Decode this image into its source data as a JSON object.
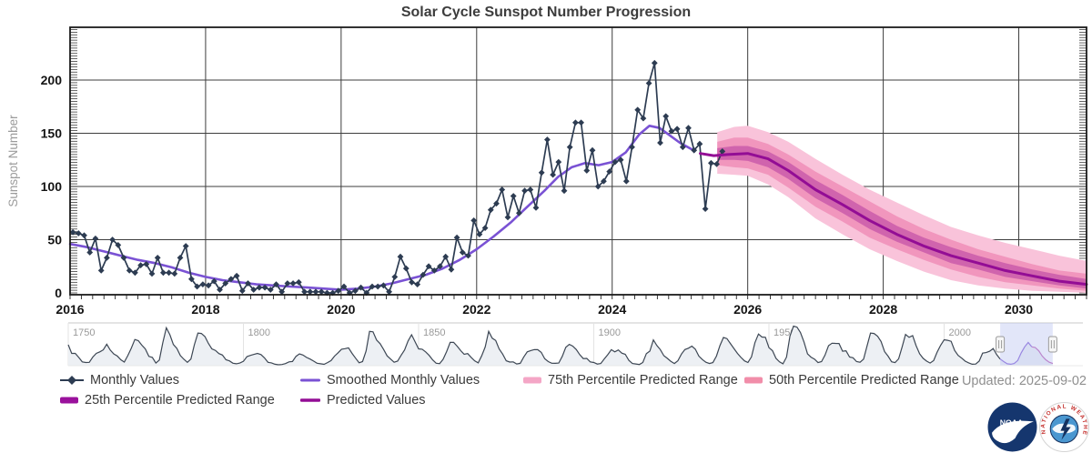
{
  "title": "Solar Cycle Sunspot Number Progression",
  "updated": "Updated: 2025-09-02",
  "y_axis": {
    "label": "Sunspot Number",
    "ticks": [
      0,
      50,
      100,
      150,
      200
    ]
  },
  "x_axis": {
    "ticks": [
      2016,
      2018,
      2020,
      2022,
      2024,
      2026,
      2028,
      2030
    ]
  },
  "legend": {
    "items": [
      "Monthly Values",
      "Smoothed Monthly Values",
      "75th Percentile Predicted Range",
      "50th Percentile Predicted Range",
      "25th Percentile Predicted Range",
      "Predicted Values"
    ]
  },
  "logos": {
    "noaa": "NOAA",
    "nws_ring": "NATIONAL WEATHER SERVICE"
  },
  "colors": {
    "monthly": "#2d3c52",
    "smoothed": "#7a52d4",
    "predicted": "#930d95",
    "band_75": "#f9c3da",
    "band_50": "#f196bd",
    "band_25": "#d064ad",
    "legend_75": "#f4a6c6",
    "legend_50": "#f18da9",
    "legend_25": "#9a119c",
    "selection": "#bfc8f2",
    "nav_line": "#3d4754",
    "nav_fill": "#edf0f4",
    "nav_pred": "#b84fae",
    "grid": "#3d3d3d",
    "frame": "#1b1b1b"
  },
  "chart_data": [
    {
      "type": "line",
      "title": "Solar Cycle Sunspot Number Progression",
      "xlabel": "",
      "ylabel": "Sunspot Number",
      "xlim": [
        2016,
        2031
      ],
      "ylim": [
        0,
        250
      ],
      "grid": true,
      "legend_position": "bottom",
      "series": [
        {
          "name": "Monthly Values",
          "style": "line-diamond",
          "x_start": 2016.042,
          "x_step": 0.083333,
          "values": [
            57,
            56,
            54,
            38,
            51,
            21,
            33,
            50,
            45,
            33,
            21,
            19,
            26,
            27,
            18,
            33,
            19,
            19,
            18,
            33,
            44,
            13,
            6,
            8,
            7,
            11,
            3,
            9,
            13,
            16,
            2,
            9,
            3,
            5,
            5,
            3,
            8,
            1,
            9,
            9,
            10,
            1,
            1,
            1,
            1,
            0,
            0,
            2,
            6,
            0,
            2,
            5,
            0,
            6,
            6,
            7,
            1,
            15,
            34,
            23,
            10,
            8,
            17,
            25,
            21,
            25,
            34,
            22,
            52,
            38,
            35,
            68,
            55,
            61,
            78,
            84,
            97,
            71,
            91,
            75,
            96,
            97,
            80,
            113,
            144,
            111,
            123,
            96,
            137,
            160,
            160,
            115,
            134,
            100,
            105,
            114,
            123,
            125,
            105,
            137,
            172,
            164,
            197,
            216,
            141,
            166,
            152,
            154,
            137,
            155,
            134,
            140,
            79,
            122,
            121,
            133
          ]
        },
        {
          "name": "Smoothed Monthly Values",
          "style": "line",
          "x": [
            2016.0,
            2016.25,
            2016.5,
            2016.75,
            2017.0,
            2017.25,
            2017.5,
            2017.75,
            2018.0,
            2018.25,
            2018.5,
            2018.75,
            2019.0,
            2019.25,
            2019.5,
            2019.75,
            2020.0,
            2020.25,
            2020.5,
            2020.75,
            2021.0,
            2021.25,
            2021.5,
            2021.75,
            2022.0,
            2022.25,
            2022.5,
            2022.75,
            2023.0,
            2023.2,
            2023.4,
            2023.6,
            2023.8,
            2024.0,
            2024.2,
            2024.4,
            2024.55,
            2024.7,
            2024.85,
            2025.0,
            2025.2
          ],
          "values": [
            46,
            43,
            39,
            35,
            31,
            28,
            24,
            19,
            15,
            12,
            10,
            8,
            7,
            6,
            5,
            4,
            3,
            4,
            6,
            9,
            13,
            17,
            23,
            31,
            41,
            53,
            66,
            81,
            96,
            109,
            118,
            122,
            120,
            123,
            132,
            149,
            157,
            155,
            148,
            141,
            134
          ]
        },
        {
          "name": "Predicted Values",
          "style": "line",
          "x": [
            2025.3,
            2025.5,
            2025.7,
            2026.0,
            2026.3,
            2026.6,
            2027.0,
            2027.4,
            2027.8,
            2028.2,
            2028.6,
            2029.0,
            2029.4,
            2029.8,
            2030.2,
            2030.6,
            2031.0
          ],
          "values": [
            131,
            129,
            130,
            131,
            126,
            115,
            97,
            83,
            68,
            55,
            44,
            35,
            28,
            21,
            16,
            11,
            8
          ]
        },
        {
          "name": "25th Percentile Predicted Range",
          "style": "band",
          "x": [
            2025.55,
            2025.8,
            2026.0,
            2026.3,
            2026.6,
            2027.0,
            2027.4,
            2027.8,
            2028.2,
            2028.6,
            2029.0,
            2029.4,
            2029.8,
            2030.2,
            2030.6,
            2031.0
          ],
          "lo": [
            125,
            125,
            124,
            118,
            107,
            89,
            75,
            60,
            48,
            38,
            28,
            22,
            15,
            11,
            7,
            4
          ],
          "hi": [
            136,
            138,
            138,
            133,
            123,
            106,
            92,
            77,
            63,
            52,
            43,
            35,
            28,
            22,
            17,
            13
          ]
        },
        {
          "name": "50th Percentile Predicted Range",
          "style": "band",
          "x": [
            2025.55,
            2025.8,
            2026.0,
            2026.3,
            2026.6,
            2027.0,
            2027.4,
            2027.8,
            2028.2,
            2028.6,
            2029.0,
            2029.4,
            2029.8,
            2030.2,
            2030.6,
            2031.0
          ],
          "lo": [
            120,
            118,
            117,
            111,
            99,
            81,
            67,
            52,
            41,
            31,
            22,
            15,
            10,
            7,
            4,
            2
          ],
          "hi": [
            142,
            146,
            146,
            140,
            130,
            114,
            100,
            86,
            72,
            60,
            50,
            41,
            34,
            27,
            21,
            18
          ]
        },
        {
          "name": "75th Percentile Predicted Range",
          "style": "band",
          "x": [
            2025.55,
            2025.8,
            2026.0,
            2026.3,
            2026.6,
            2027.0,
            2027.4,
            2027.8,
            2028.2,
            2028.6,
            2029.0,
            2029.4,
            2029.8,
            2030.2,
            2030.6,
            2031.0
          ],
          "lo": [
            112,
            111,
            110,
            102,
            90,
            70,
            55,
            41,
            30,
            20,
            12,
            7,
            4,
            2,
            1,
            0
          ],
          "hi": [
            151,
            156,
            157,
            151,
            142,
            126,
            111,
            97,
            85,
            73,
            62,
            54,
            47,
            41,
            35,
            30
          ]
        }
      ]
    },
    {
      "type": "area",
      "role": "navigator",
      "xlim": [
        1750,
        2039.6
      ],
      "x_ticks": [
        1750,
        1800,
        1850,
        1900,
        1950,
        2000
      ],
      "selection": [
        2016,
        2031
      ],
      "start_year": 1749,
      "values": [
        135,
        139,
        79,
        79,
        51,
        20,
        16,
        17,
        54,
        79,
        90,
        104,
        143,
        102,
        75,
        61,
        35,
        19,
        63,
        116,
        176,
        168,
        136,
        110,
        58,
        51,
        12,
        33,
        154,
        257,
        209,
        141,
        113,
        64,
        38,
        17,
        40,
        139,
        220,
        218,
        196,
        149,
        111,
        100,
        78,
        68,
        35,
        27,
        11,
        7,
        12,
        24,
        57,
        65,
        72,
        79,
        71,
        48,
        17,
        13,
        4,
        0,
        2,
        8,
        20,
        23,
        59,
        76,
        68,
        51,
        40,
        26,
        11,
        7,
        3,
        15,
        29,
        60,
        83,
        108,
        112,
        118,
        79,
        46,
        14,
        22,
        96,
        232,
        229,
        172,
        147,
        107,
        62,
        40,
        18,
        25,
        66,
        103,
        165,
        209,
        159,
        111,
        108,
        90,
        65,
        34,
        11,
        8,
        38,
        92,
        156,
        156,
        129,
        99,
        73,
        78,
        51,
        27,
        13,
        62,
        124,
        232,
        185,
        169,
        110,
        74,
        28,
        19,
        20,
        6,
        10,
        53,
        90,
        99,
        106,
        105,
        86,
        42,
        22,
        11,
        10,
        12,
        59,
        121,
        142,
        130,
        106,
        70,
        43,
        44,
        20,
        16,
        5,
        9,
        41,
        70,
        105,
        90,
        103,
        81,
        73,
        31,
        9,
        6,
        2,
        16,
        78,
        95,
        173,
        134,
        106,
        63,
        44,
        24,
        9,
        28,
        74,
        106,
        115,
        130,
        108,
        60,
        36,
        18,
        9,
        15,
        60,
        133,
        190,
        182,
        148,
        113,
        79,
        51,
        27,
        16,
        55,
        154,
        214,
        193,
        191,
        119,
        98,
        45,
        20,
        7,
        53,
        200,
        269,
        262,
        225,
        159,
        76,
        53,
        39,
        15,
        22,
        67,
        133,
        150,
        149,
        148,
        94,
        97,
        54,
        49,
        22,
        18,
        39,
        131,
        220,
        218,
        198,
        162,
        91,
        60,
        21,
        15,
        41,
        123,
        211,
        191,
        203,
        133,
        76,
        45,
        25,
        12,
        29,
        88,
        136,
        174,
        170,
        163,
        99,
        65,
        46,
        25,
        13,
        4,
        5,
        25,
        81,
        85,
        94,
        113,
        70,
        40,
        22,
        7,
        4,
        9,
        30,
        83,
        125,
        155,
        125,
        120,
        97,
        61,
        35,
        18,
        9
      ]
    }
  ]
}
